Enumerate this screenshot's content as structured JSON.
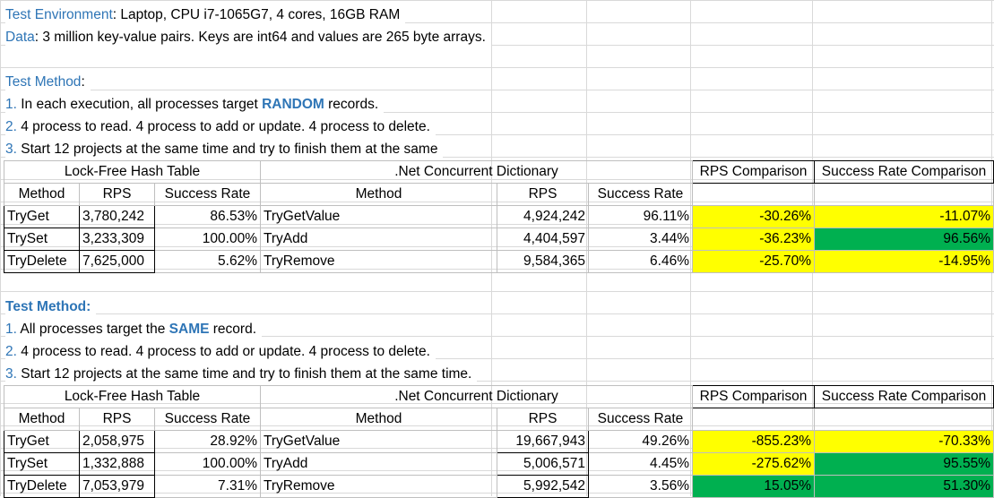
{
  "env": {
    "label": "Test Environment",
    "text": ": Laptop, CPU i7-1065G7, 4 cores, 16GB RAM"
  },
  "data_line": {
    "label": "Data",
    "text": ": 3 million key-value pairs. Keys are int64 and values are 265 byte arrays."
  },
  "section1": {
    "title": "Test Method",
    "title_suffix": ":",
    "steps": [
      {
        "num": "1.",
        "pre": " In each execution, all processes target ",
        "emph": "RANDOM",
        "post": " records."
      },
      {
        "num": "2.",
        "pre": " 4 process to read. 4 process to add or update. 4 process to delete.",
        "emph": "",
        "post": ""
      },
      {
        "num": "3.",
        "pre": " Start 12 projects at the same time and try to finish them at the same",
        "emph": "",
        "post": ""
      }
    ],
    "group_headers": {
      "lockfree": "Lock-Free Hash Table",
      "netdict": ".Net Concurrent Dictionary",
      "rps_cmp": "RPS Comparison",
      "sr_cmp": "Success Rate Comparison"
    },
    "col_headers": {
      "method": "Method",
      "rps": "RPS",
      "sr": "Success Rate",
      "method2": "Method",
      "rps2": "RPS",
      "sr2": "Success Rate"
    },
    "rows": [
      {
        "m": "TryGet",
        "rps": "3,780,242",
        "sr": "86.53%",
        "m2": "TryGetValue",
        "rps2": "4,924,242",
        "sr2": "96.11%",
        "rpsc": "-30.26%",
        "src": "-11.07%",
        "rpsc_color": "yellow",
        "src_color": "yellow"
      },
      {
        "m": "TrySet",
        "rps": "3,233,309",
        "sr": "100.00%",
        "m2": "TryAdd",
        "rps2": "4,404,597",
        "sr2": "3.44%",
        "rpsc": "-36.23%",
        "src": "96.56%",
        "rpsc_color": "yellow",
        "src_color": "green"
      },
      {
        "m": "TryDelete",
        "rps": "7,625,000",
        "sr": "5.62%",
        "m2": "TryRemove",
        "rps2": "9,584,365",
        "sr2": "6.46%",
        "rpsc": "-25.70%",
        "src": "-14.95%",
        "rpsc_color": "yellow",
        "src_color": "yellow"
      }
    ]
  },
  "section2": {
    "title": "Test Method:",
    "steps": [
      {
        "num": "1.",
        "pre": " All processes target the ",
        "emph": "SAME",
        "post": " record."
      },
      {
        "num": "2.",
        "pre": " 4 process to read. 4 process to add or update. 4 process to delete.",
        "emph": "",
        "post": ""
      },
      {
        "num": "3.",
        "pre": " Start 12 projects at the same time and try to finish them at the same time.",
        "emph": "",
        "post": ""
      }
    ],
    "group_headers": {
      "lockfree": "Lock-Free Hash Table",
      "netdict": ".Net Concurrent Dictionary",
      "rps_cmp": "RPS Comparison",
      "sr_cmp": "Success Rate Comparison"
    },
    "col_headers": {
      "method": "Method",
      "rps": "RPS",
      "sr": "Success Rate",
      "method2": "Method",
      "rps2": "RPS",
      "sr2": "Success Rate"
    },
    "rows": [
      {
        "m": "TryGet",
        "rps": "2,058,975",
        "sr": "28.92%",
        "m2": "TryGetValue",
        "rps2": "19,667,943",
        "sr2": "49.26%",
        "rpsc": "-855.23%",
        "src": "-70.33%",
        "rpsc_color": "yellow",
        "src_color": "yellow"
      },
      {
        "m": "TrySet",
        "rps": "1,332,888",
        "sr": "100.00%",
        "m2": "TryAdd",
        "rps2": "5,006,571",
        "sr2": "4.45%",
        "rpsc": "-275.62%",
        "src": "95.55%",
        "rpsc_color": "yellow",
        "src_color": "green"
      },
      {
        "m": "TryDelete",
        "rps": "7,053,979",
        "sr": "7.31%",
        "m2": "TryRemove",
        "rps2": "5,992,542",
        "sr2": "3.56%",
        "rpsc": "15.05%",
        "src": "51.30%",
        "rpsc_color": "green",
        "src_color": "green"
      }
    ]
  }
}
